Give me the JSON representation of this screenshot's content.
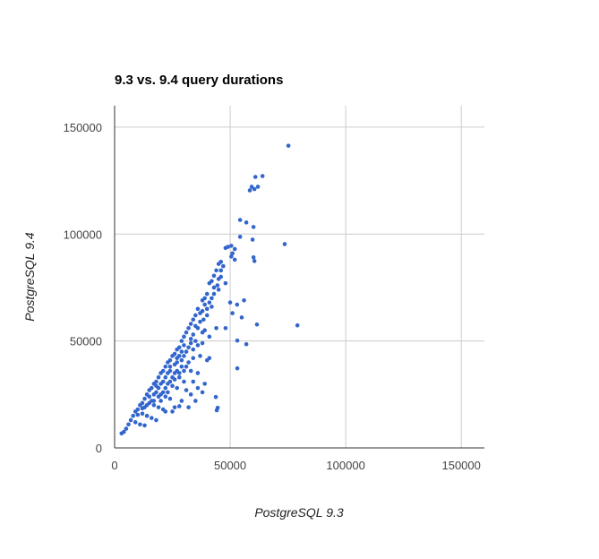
{
  "chart_data": {
    "type": "scatter",
    "title": "9.3 vs. 9.4 query durations",
    "xlabel": "PostgreSQL 9.3",
    "ylabel": "PostgreSQL 9.4",
    "xlim": [
      0,
      160000
    ],
    "ylim": [
      0,
      160000
    ],
    "xticks": [
      "0",
      "50000",
      "100000",
      "150000"
    ],
    "yticks": [
      "0",
      "50000",
      "100000",
      "150000"
    ],
    "tick_values": [
      0,
      50000,
      100000,
      150000
    ],
    "grid": true,
    "legend": "none",
    "point_color": "#3366cc",
    "points": [
      [
        75200,
        141300
      ],
      [
        60900,
        126700
      ],
      [
        64000,
        127100
      ],
      [
        59300,
        122100
      ],
      [
        62000,
        122100
      ],
      [
        58500,
        120400
      ],
      [
        60500,
        121000
      ],
      [
        54300,
        106600
      ],
      [
        57000,
        105400
      ],
      [
        60100,
        103300
      ],
      [
        54300,
        98700
      ],
      [
        59700,
        97400
      ],
      [
        73600,
        95300
      ],
      [
        60100,
        89100
      ],
      [
        60500,
        87400
      ],
      [
        79100,
        57300
      ],
      [
        61600,
        57700
      ],
      [
        53100,
        50200
      ],
      [
        57000,
        48500
      ],
      [
        53100,
        37200
      ],
      [
        44600,
        18800
      ],
      [
        44200,
        17600
      ],
      [
        43800,
        23800
      ],
      [
        50500,
        94500
      ],
      [
        49000,
        94000
      ],
      [
        48000,
        93500
      ],
      [
        52000,
        93000
      ],
      [
        51000,
        91000
      ],
      [
        50500,
        89500
      ],
      [
        52000,
        88000
      ],
      [
        46000,
        87000
      ],
      [
        45000,
        86000
      ],
      [
        44000,
        83000
      ],
      [
        46000,
        80000
      ],
      [
        43000,
        80500
      ],
      [
        42000,
        78000
      ],
      [
        41000,
        77000
      ],
      [
        44500,
        76000
      ],
      [
        45000,
        74000
      ],
      [
        48000,
        77000
      ],
      [
        43000,
        72000
      ],
      [
        40000,
        72000
      ],
      [
        39000,
        70000
      ],
      [
        38000,
        69000
      ],
      [
        41000,
        68000
      ],
      [
        42000,
        66000
      ],
      [
        36000,
        65000
      ],
      [
        37000,
        63000
      ],
      [
        35000,
        62000
      ],
      [
        34000,
        60000
      ],
      [
        38500,
        60000
      ],
      [
        40000,
        62000
      ],
      [
        33000,
        58000
      ],
      [
        32000,
        56000
      ],
      [
        36000,
        56000
      ],
      [
        39000,
        55000
      ],
      [
        41000,
        52000
      ],
      [
        44000,
        56000
      ],
      [
        48000,
        56000
      ],
      [
        50000,
        68000
      ],
      [
        53000,
        67000
      ],
      [
        56000,
        69000
      ],
      [
        51000,
        63000
      ],
      [
        55000,
        61000
      ],
      [
        31000,
        54000
      ],
      [
        30000,
        52000
      ],
      [
        29000,
        50000
      ],
      [
        33000,
        51000
      ],
      [
        35000,
        50000
      ],
      [
        38000,
        49000
      ],
      [
        30000,
        48000
      ],
      [
        28000,
        47000
      ],
      [
        27000,
        46000
      ],
      [
        26000,
        44000
      ],
      [
        31000,
        45000
      ],
      [
        34000,
        46000
      ],
      [
        37000,
        43000
      ],
      [
        40000,
        41000
      ],
      [
        41000,
        42000
      ],
      [
        25000,
        43000
      ],
      [
        24000,
        41000
      ],
      [
        23000,
        40000
      ],
      [
        27000,
        40000
      ],
      [
        29000,
        41000
      ],
      [
        31000,
        38000
      ],
      [
        33000,
        36000
      ],
      [
        36000,
        35000
      ],
      [
        22000,
        38000
      ],
      [
        21000,
        36000
      ],
      [
        20000,
        35000
      ],
      [
        24000,
        36000
      ],
      [
        26000,
        35000
      ],
      [
        28000,
        33000
      ],
      [
        30000,
        31000
      ],
      [
        34000,
        31000
      ],
      [
        19000,
        33000
      ],
      [
        18000,
        31000
      ],
      [
        17000,
        30000
      ],
      [
        21000,
        31000
      ],
      [
        23000,
        30000
      ],
      [
        25000,
        29000
      ],
      [
        27000,
        28000
      ],
      [
        31000,
        27000
      ],
      [
        16000,
        28000
      ],
      [
        15000,
        27000
      ],
      [
        14000,
        25000
      ],
      [
        18000,
        26000
      ],
      [
        20000,
        25000
      ],
      [
        22000,
        24000
      ],
      [
        24000,
        23000
      ],
      [
        29000,
        22000
      ],
      [
        13000,
        23000
      ],
      [
        12000,
        21000
      ],
      [
        11000,
        20000
      ],
      [
        15000,
        21000
      ],
      [
        17000,
        20000
      ],
      [
        19000,
        19000
      ],
      [
        21000,
        18000
      ],
      [
        26000,
        19000
      ],
      [
        10000,
        18000
      ],
      [
        9000,
        17000
      ],
      [
        8000,
        15000
      ],
      [
        12000,
        16000
      ],
      [
        14000,
        15000
      ],
      [
        16000,
        14000
      ],
      [
        18000,
        13000
      ],
      [
        22000,
        17000
      ],
      [
        7000,
        13000
      ],
      [
        6000,
        11000
      ],
      [
        9000,
        12000
      ],
      [
        11000,
        11000
      ],
      [
        13000,
        10500
      ],
      [
        5000,
        9000
      ],
      [
        4000,
        7500
      ],
      [
        3000,
        6800
      ],
      [
        25000,
        17000
      ],
      [
        28000,
        19500
      ],
      [
        32000,
        19000
      ],
      [
        33000,
        25000
      ],
      [
        35000,
        22000
      ],
      [
        38000,
        26000
      ],
      [
        36000,
        28000
      ],
      [
        39000,
        30000
      ],
      [
        20000,
        30000
      ],
      [
        19000,
        28000
      ],
      [
        22000,
        33000
      ],
      [
        23000,
        35000
      ],
      [
        24000,
        38000
      ],
      [
        26000,
        39000
      ],
      [
        27000,
        42000
      ],
      [
        28000,
        43000
      ],
      [
        15000,
        24000
      ],
      [
        16000,
        22000
      ],
      [
        17000,
        25000
      ],
      [
        18000,
        29000
      ],
      [
        13000,
        19000
      ],
      [
        14000,
        20000
      ],
      [
        12000,
        18500
      ],
      [
        10000,
        15500
      ],
      [
        29000,
        45000
      ],
      [
        30000,
        43000
      ],
      [
        32000,
        47000
      ],
      [
        33000,
        49000
      ],
      [
        34000,
        53000
      ],
      [
        35000,
        57000
      ],
      [
        37000,
        59000
      ],
      [
        38000,
        64000
      ],
      [
        39000,
        67000
      ],
      [
        40000,
        65000
      ],
      [
        42000,
        70000
      ],
      [
        43000,
        75000
      ],
      [
        45000,
        79000
      ],
      [
        46000,
        83000
      ],
      [
        47000,
        85000
      ],
      [
        38000,
        54000
      ],
      [
        36000,
        48000
      ],
      [
        34000,
        42000
      ],
      [
        32000,
        40000
      ],
      [
        30000,
        36000
      ],
      [
        28000,
        35000
      ],
      [
        26000,
        32000
      ],
      [
        24000,
        31000
      ],
      [
        22000,
        28000
      ],
      [
        21000,
        26000
      ],
      [
        19000,
        24000
      ],
      [
        17000,
        22000
      ],
      [
        20000,
        22000
      ],
      [
        23000,
        26000
      ],
      [
        25000,
        33000
      ],
      [
        27000,
        36000
      ],
      [
        29000,
        38000
      ]
    ]
  }
}
